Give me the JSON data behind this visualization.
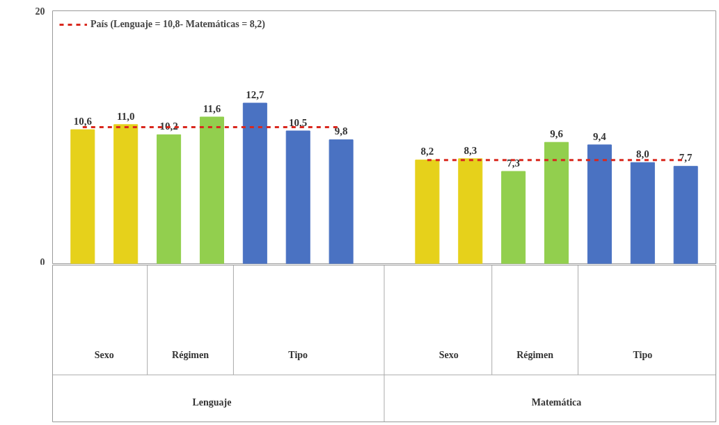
{
  "chart_data": {
    "type": "bar",
    "categories": [
      null,
      null,
      null,
      null,
      null,
      null,
      null,
      null,
      null,
      null,
      null,
      null,
      null,
      null
    ],
    "colors": [
      "#e6d11b",
      "#e6d11b",
      "#92cf4e",
      "#92cf4e",
      "#4a72c2",
      "#4a72c2",
      "#4a72c2",
      "#e6d11b",
      "#e6d11b",
      "#92cf4e",
      "#92cf4e",
      "#4a72c2",
      "#4a72c2",
      "#4a72c2"
    ],
    "values": [
      10.6,
      11.0,
      10.2,
      11.6,
      12.7,
      10.5,
      9.8,
      8.2,
      8.3,
      7.3,
      9.6,
      9.4,
      8.0,
      7.7
    ],
    "value_labels": [
      "10,6",
      "11,0",
      "10,2",
      "11,6",
      "12,7",
      "10,5",
      "9,8",
      "8,2",
      "8,3",
      "7,3",
      "9,6",
      "9,4",
      "8,0",
      "7,7"
    ],
    "ref_lines": [
      {
        "axis": "y",
        "value": 10.8,
        "label": "País (Lenguaje = 10,8- Matemáticas = 8,2)",
        "color": "#d9281e",
        "line_style": "dashed"
      },
      {
        "axis": "y",
        "value": 8.2,
        "label": null,
        "color": "#d9281e",
        "line_style": "dashed"
      }
    ],
    "ylim": [
      0,
      20
    ],
    "yticks": [
      0,
      20
    ],
    "grid": false,
    "legend": "top left",
    "annotations": [
      "Sexo",
      "Régimen",
      "Tipo",
      "Sexo",
      "Régimen",
      "Tipo",
      "Lenguaje",
      "Matemática"
    ]
  }
}
